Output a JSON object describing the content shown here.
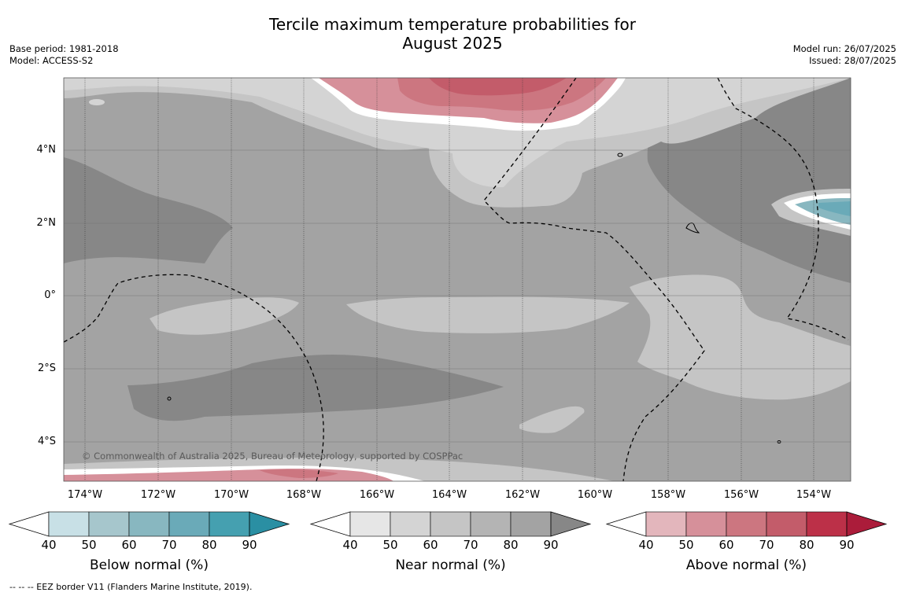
{
  "title": {
    "line1": "Tercile maximum temperature probabilities for",
    "line2": "August 2025"
  },
  "meta_left": {
    "base_period": "Base period: 1981-2018",
    "model": "Model: ACCESS-S2"
  },
  "meta_right": {
    "model_run": "Model run: 26/07/2025",
    "issued": "Issued: 28/07/2025"
  },
  "map": {
    "x_ticks": [
      "174°W",
      "172°W",
      "170°W",
      "168°W",
      "166°W",
      "164°W",
      "162°W",
      "160°W",
      "158°W",
      "156°W",
      "154°W"
    ],
    "y_ticks": [
      "4°N",
      "2°N",
      "0°",
      "2°S",
      "4°S"
    ],
    "copyright": "© Commonwealth of Australia 2025, Bureau of Meteorology, supported by COSPPac"
  },
  "colorbars": [
    {
      "label": "Below normal (%)",
      "ticks": [
        "40",
        "50",
        "60",
        "70",
        "80",
        "90"
      ],
      "colors": [
        "#c8e0e6",
        "#a6c6cc",
        "#88b7c0",
        "#6aaab8",
        "#45a0b0",
        "#2a8fa3"
      ]
    },
    {
      "label": "Near normal (%)",
      "ticks": [
        "40",
        "50",
        "60",
        "70",
        "80",
        "90"
      ],
      "colors": [
        "#e6e6e6",
        "#d4d4d4",
        "#c5c5c5",
        "#b4b4b4",
        "#a3a3a3",
        "#878787"
      ]
    },
    {
      "label": "Above normal (%)",
      "ticks": [
        "40",
        "50",
        "60",
        "70",
        "80",
        "90"
      ],
      "colors": [
        "#e3b6bc",
        "#d6909a",
        "#cc7680",
        "#c35c6a",
        "#bc3048",
        "#ab1c3a"
      ]
    }
  ],
  "footer": "--  --  -- EEZ border V11 (Flanders Marine Institute, 2019)."
}
